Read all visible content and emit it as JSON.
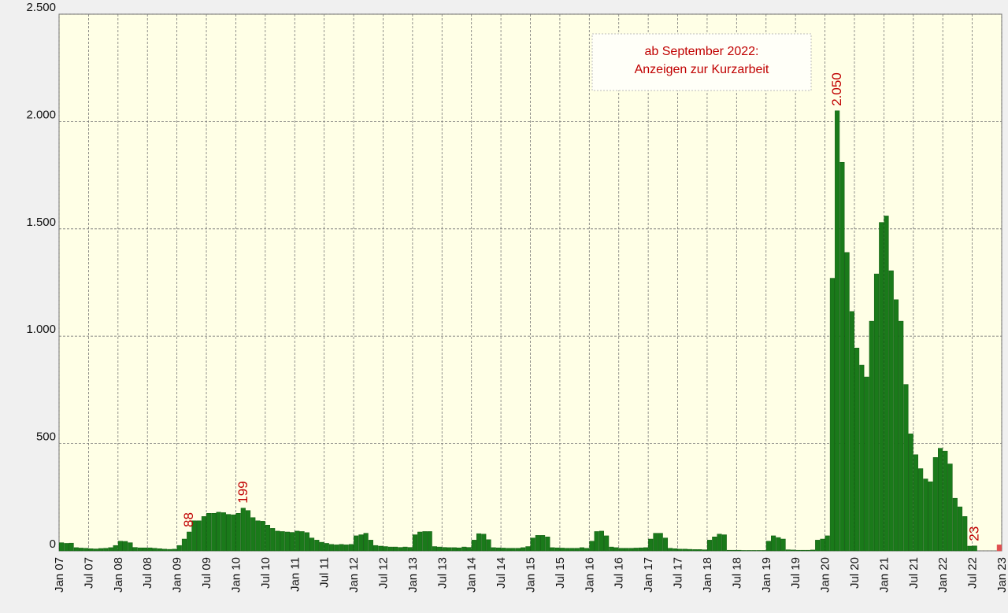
{
  "chart_data": {
    "type": "bar",
    "annotation": [
      "ab September 2022:",
      "Anzeigen zur Kurzarbeit"
    ],
    "x": [
      "2007-01",
      "2007-02",
      "2007-03",
      "2007-04",
      "2007-05",
      "2007-06",
      "2007-07",
      "2007-08",
      "2007-09",
      "2007-10",
      "2007-11",
      "2007-12",
      "2008-01",
      "2008-02",
      "2008-03",
      "2008-04",
      "2008-05",
      "2008-06",
      "2008-07",
      "2008-08",
      "2008-09",
      "2008-10",
      "2008-11",
      "2008-12",
      "2009-01",
      "2009-02",
      "2009-03",
      "2009-04",
      "2009-05",
      "2009-06",
      "2009-07",
      "2009-08",
      "2009-09",
      "2009-10",
      "2009-11",
      "2009-12",
      "2010-01",
      "2010-02",
      "2010-03",
      "2010-04",
      "2010-05",
      "2010-06",
      "2010-07",
      "2010-08",
      "2010-09",
      "2010-10",
      "2010-11",
      "2010-12",
      "2011-01",
      "2011-02",
      "2011-03",
      "2011-04",
      "2011-05",
      "2011-06",
      "2011-07",
      "2011-08",
      "2011-09",
      "2011-10",
      "2011-11",
      "2011-12",
      "2012-01",
      "2012-02",
      "2012-03",
      "2012-04",
      "2012-05",
      "2012-06",
      "2012-07",
      "2012-08",
      "2012-09",
      "2012-10",
      "2012-11",
      "2012-12",
      "2013-01",
      "2013-02",
      "2013-03",
      "2013-04",
      "2013-05",
      "2013-06",
      "2013-07",
      "2013-08",
      "2013-09",
      "2013-10",
      "2013-11",
      "2013-12",
      "2014-01",
      "2014-02",
      "2014-03",
      "2014-04",
      "2014-05",
      "2014-06",
      "2014-07",
      "2014-08",
      "2014-09",
      "2014-10",
      "2014-11",
      "2014-12",
      "2015-01",
      "2015-02",
      "2015-03",
      "2015-04",
      "2015-05",
      "2015-06",
      "2015-07",
      "2015-08",
      "2015-09",
      "2015-10",
      "2015-11",
      "2015-12",
      "2016-01",
      "2016-02",
      "2016-03",
      "2016-04",
      "2016-05",
      "2016-06",
      "2016-07",
      "2016-08",
      "2016-09",
      "2016-10",
      "2016-11",
      "2016-12",
      "2017-01",
      "2017-02",
      "2017-03",
      "2017-04",
      "2017-05",
      "2017-06",
      "2017-07",
      "2017-08",
      "2017-09",
      "2017-10",
      "2017-11",
      "2017-12",
      "2018-01",
      "2018-02",
      "2018-03",
      "2018-04",
      "2018-05",
      "2018-06",
      "2018-07",
      "2018-08",
      "2018-09",
      "2018-10",
      "2018-11",
      "2018-12",
      "2019-01",
      "2019-02",
      "2019-03",
      "2019-04",
      "2019-05",
      "2019-06",
      "2019-07",
      "2019-08",
      "2019-09",
      "2019-10",
      "2019-11",
      "2019-12",
      "2020-01",
      "2020-02",
      "2020-03",
      "2020-04",
      "2020-05",
      "2020-06",
      "2020-07",
      "2020-08",
      "2020-09",
      "2020-10",
      "2020-11",
      "2020-12",
      "2021-01",
      "2021-02",
      "2021-03",
      "2021-04",
      "2021-05",
      "2021-06",
      "2021-07",
      "2021-08",
      "2021-09",
      "2021-10",
      "2021-11",
      "2021-12",
      "2022-01",
      "2022-02",
      "2022-03",
      "2022-04",
      "2022-05",
      "2022-06",
      "2022-07",
      "2022-08",
      "2022-09",
      "2022-10",
      "2022-11",
      "2022-12"
    ],
    "values": [
      38,
      35,
      36,
      15,
      13,
      12,
      10,
      9,
      11,
      12,
      15,
      25,
      45,
      44,
      38,
      16,
      14,
      14,
      14,
      12,
      10,
      8,
      7,
      8,
      25,
      55,
      88,
      140,
      140,
      160,
      175,
      175,
      180,
      178,
      170,
      168,
      175,
      199,
      188,
      155,
      140,
      138,
      120,
      105,
      92,
      90,
      88,
      86,
      92,
      90,
      85,
      60,
      50,
      40,
      35,
      30,
      28,
      30,
      28,
      30,
      70,
      75,
      82,
      50,
      25,
      22,
      20,
      18,
      18,
      16,
      18,
      16,
      75,
      88,
      90,
      90,
      20,
      18,
      16,
      15,
      15,
      14,
      18,
      16,
      50,
      80,
      78,
      52,
      15,
      14,
      13,
      12,
      12,
      12,
      15,
      20,
      60,
      72,
      72,
      65,
      15,
      14,
      13,
      12,
      12,
      12,
      15,
      12,
      45,
      90,
      92,
      70,
      18,
      15,
      12,
      12,
      12,
      13,
      14,
      15,
      55,
      82,
      82,
      60,
      12,
      10,
      8,
      8,
      7,
      6,
      6,
      5,
      50,
      65,
      78,
      75,
      3,
      3,
      3,
      2,
      2,
      2,
      2,
      2,
      45,
      70,
      62,
      55,
      5,
      4,
      3,
      3,
      3,
      4,
      50,
      55,
      70,
      1270,
      2050,
      1810,
      1390,
      1115,
      945,
      865,
      810,
      1070,
      1290,
      1530,
      1560,
      1305,
      1170,
      1070,
      775,
      545,
      448,
      383,
      335,
      322,
      435,
      478,
      465,
      405,
      245,
      205,
      160,
      22,
      23,
      null,
      null,
      null,
      null,
      28
    ],
    "value_labels": [
      null,
      null,
      null,
      null,
      null,
      null,
      null,
      null,
      null,
      null,
      null,
      null,
      null,
      null,
      null,
      null,
      null,
      null,
      null,
      null,
      null,
      null,
      null,
      null,
      null,
      null,
      "88",
      null,
      null,
      null,
      null,
      null,
      null,
      null,
      null,
      null,
      null,
      "199",
      null,
      null,
      null,
      null,
      null,
      null,
      null,
      null,
      null,
      null,
      null,
      null,
      null,
      null,
      null,
      null,
      null,
      null,
      null,
      null,
      null,
      null,
      null,
      null,
      null,
      null,
      null,
      null,
      null,
      null,
      null,
      null,
      null,
      null,
      null,
      null,
      null,
      null,
      null,
      null,
      null,
      null,
      null,
      null,
      null,
      null,
      null,
      null,
      null,
      null,
      null,
      null,
      null,
      null,
      null,
      null,
      null,
      null,
      null,
      null,
      null,
      null,
      null,
      null,
      null,
      null,
      null,
      null,
      null,
      null,
      null,
      null,
      null,
      null,
      null,
      null,
      null,
      null,
      null,
      null,
      null,
      null,
      null,
      null,
      null,
      null,
      null,
      null,
      null,
      null,
      null,
      null,
      null,
      null,
      null,
      null,
      null,
      null,
      null,
      null,
      null,
      null,
      null,
      null,
      null,
      null,
      null,
      null,
      null,
      null,
      null,
      null,
      null,
      null,
      null,
      null,
      null,
      null,
      null,
      null,
      "2.050",
      null,
      null,
      null,
      null,
      null,
      null,
      null,
      null,
      null,
      null,
      null,
      null,
      null,
      null,
      null,
      null,
      null,
      null,
      null,
      null,
      null,
      null,
      null,
      null,
      null,
      null,
      null,
      "23",
      null,
      null,
      null,
      null,
      null
    ],
    "color": "#1a7a1a",
    "highlight_from": "2022-09",
    "highlight_color": "#e05050",
    "label_color": "#c00000",
    "xlim": [
      "2007-01",
      "2023-01"
    ],
    "xticks": [
      {
        "value": "2007-01",
        "label": "Jan 07"
      },
      {
        "value": "2007-07",
        "label": "Jul 07"
      },
      {
        "value": "2008-01",
        "label": "Jan 08"
      },
      {
        "value": "2008-07",
        "label": "Jul 08"
      },
      {
        "value": "2009-01",
        "label": "Jan 09"
      },
      {
        "value": "2009-07",
        "label": "Jul 09"
      },
      {
        "value": "2010-01",
        "label": "Jan 10"
      },
      {
        "value": "2010-07",
        "label": "Jul 10"
      },
      {
        "value": "2011-01",
        "label": "Jan 11"
      },
      {
        "value": "2011-07",
        "label": "Jul 11"
      },
      {
        "value": "2012-01",
        "label": "Jan 12"
      },
      {
        "value": "2012-07",
        "label": "Jul 12"
      },
      {
        "value": "2013-01",
        "label": "Jan 13"
      },
      {
        "value": "2013-07",
        "label": "Jul 13"
      },
      {
        "value": "2014-01",
        "label": "Jan 14"
      },
      {
        "value": "2014-07",
        "label": "Jul 14"
      },
      {
        "value": "2015-01",
        "label": "Jan 15"
      },
      {
        "value": "2015-07",
        "label": "Jul 15"
      },
      {
        "value": "2016-01",
        "label": "Jan 16"
      },
      {
        "value": "2016-07",
        "label": "Jul 16"
      },
      {
        "value": "2017-01",
        "label": "Jan 17"
      },
      {
        "value": "2017-07",
        "label": "Jul 17"
      },
      {
        "value": "2018-01",
        "label": "Jan 18"
      },
      {
        "value": "2018-07",
        "label": "Jul 18"
      },
      {
        "value": "2019-01",
        "label": "Jan 19"
      },
      {
        "value": "2019-07",
        "label": "Jul 19"
      },
      {
        "value": "2020-01",
        "label": "Jan 20"
      },
      {
        "value": "2020-07",
        "label": "Jul 20"
      },
      {
        "value": "2021-01",
        "label": "Jan 21"
      },
      {
        "value": "2021-07",
        "label": "Jul 21"
      },
      {
        "value": "2022-01",
        "label": "Jan 22"
      },
      {
        "value": "2022-07",
        "label": "Jul 22"
      },
      {
        "value": "2023-01",
        "label": "Jan 23"
      }
    ],
    "ylim": [
      0,
      2500
    ],
    "yticks": [
      0,
      500,
      {
        "value": 1000,
        "label": "1.000"
      },
      {
        "value": 1500,
        "label": "1.500"
      },
      {
        "value": 2000,
        "label": "2.000"
      },
      {
        "value": 2500,
        "label": "2.500"
      }
    ],
    "grid": true
  }
}
